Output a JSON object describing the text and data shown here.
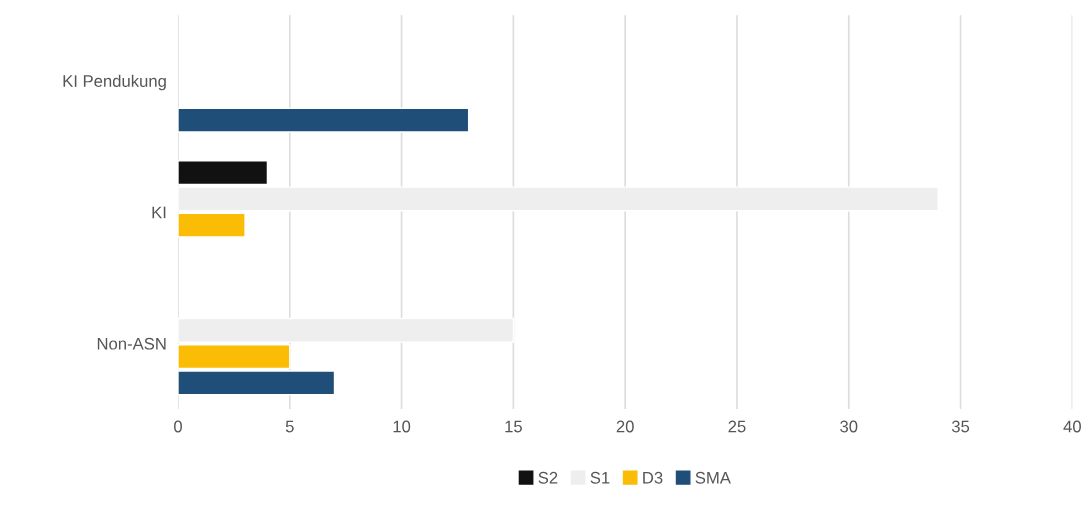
{
  "chart_data": {
    "type": "bar",
    "orientation": "horizontal",
    "categories": [
      "KI Pendukung",
      "KI",
      "Non-ASN"
    ],
    "series": [
      {
        "name": "S2",
        "color": "#111111",
        "values": [
          null,
          4,
          null
        ]
      },
      {
        "name": "S1",
        "color": "#eeeeee",
        "values": [
          null,
          34,
          15
        ]
      },
      {
        "name": "D3",
        "color": "#fbbc05",
        "values": [
          null,
          3,
          5
        ]
      },
      {
        "name": "SMA",
        "color": "#1f4e79",
        "values": [
          13,
          null,
          7
        ]
      }
    ],
    "xlim": [
      0,
      40
    ],
    "xticks": [
      0,
      5,
      10,
      15,
      20,
      25,
      30,
      35,
      40
    ],
    "grid": "x",
    "legend": "bottom"
  }
}
